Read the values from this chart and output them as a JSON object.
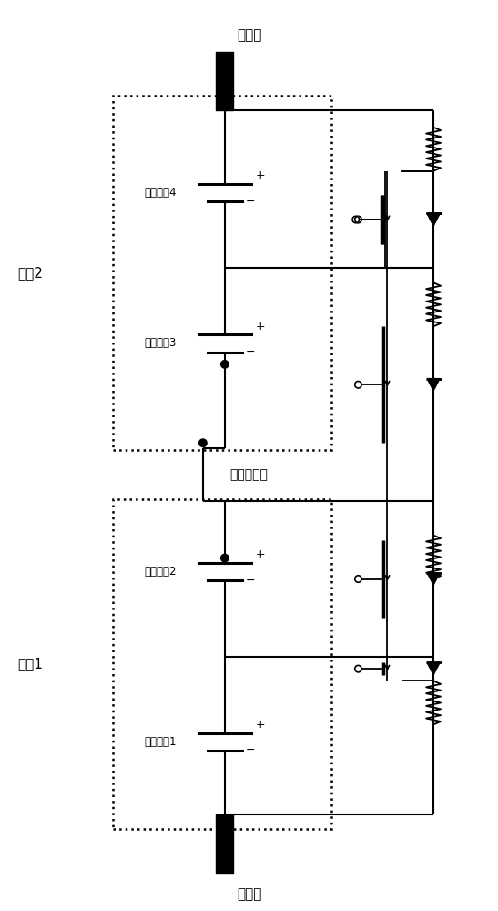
{
  "title": "",
  "background": "#ffffff",
  "line_color": "#000000",
  "text_color": "#000000",
  "labels": {
    "busbar_top": "汇流条",
    "busbar_bottom": "汇流条",
    "busbar_open": "汇流条开路",
    "module2": "模块2",
    "module1": "模块1",
    "cell4": "单位电池4",
    "cell3": "单位电池3",
    "cell2": "单位电池2",
    "cell1": "单位电池1"
  },
  "figsize": [
    5.47,
    10.0
  ],
  "dpi": 100
}
